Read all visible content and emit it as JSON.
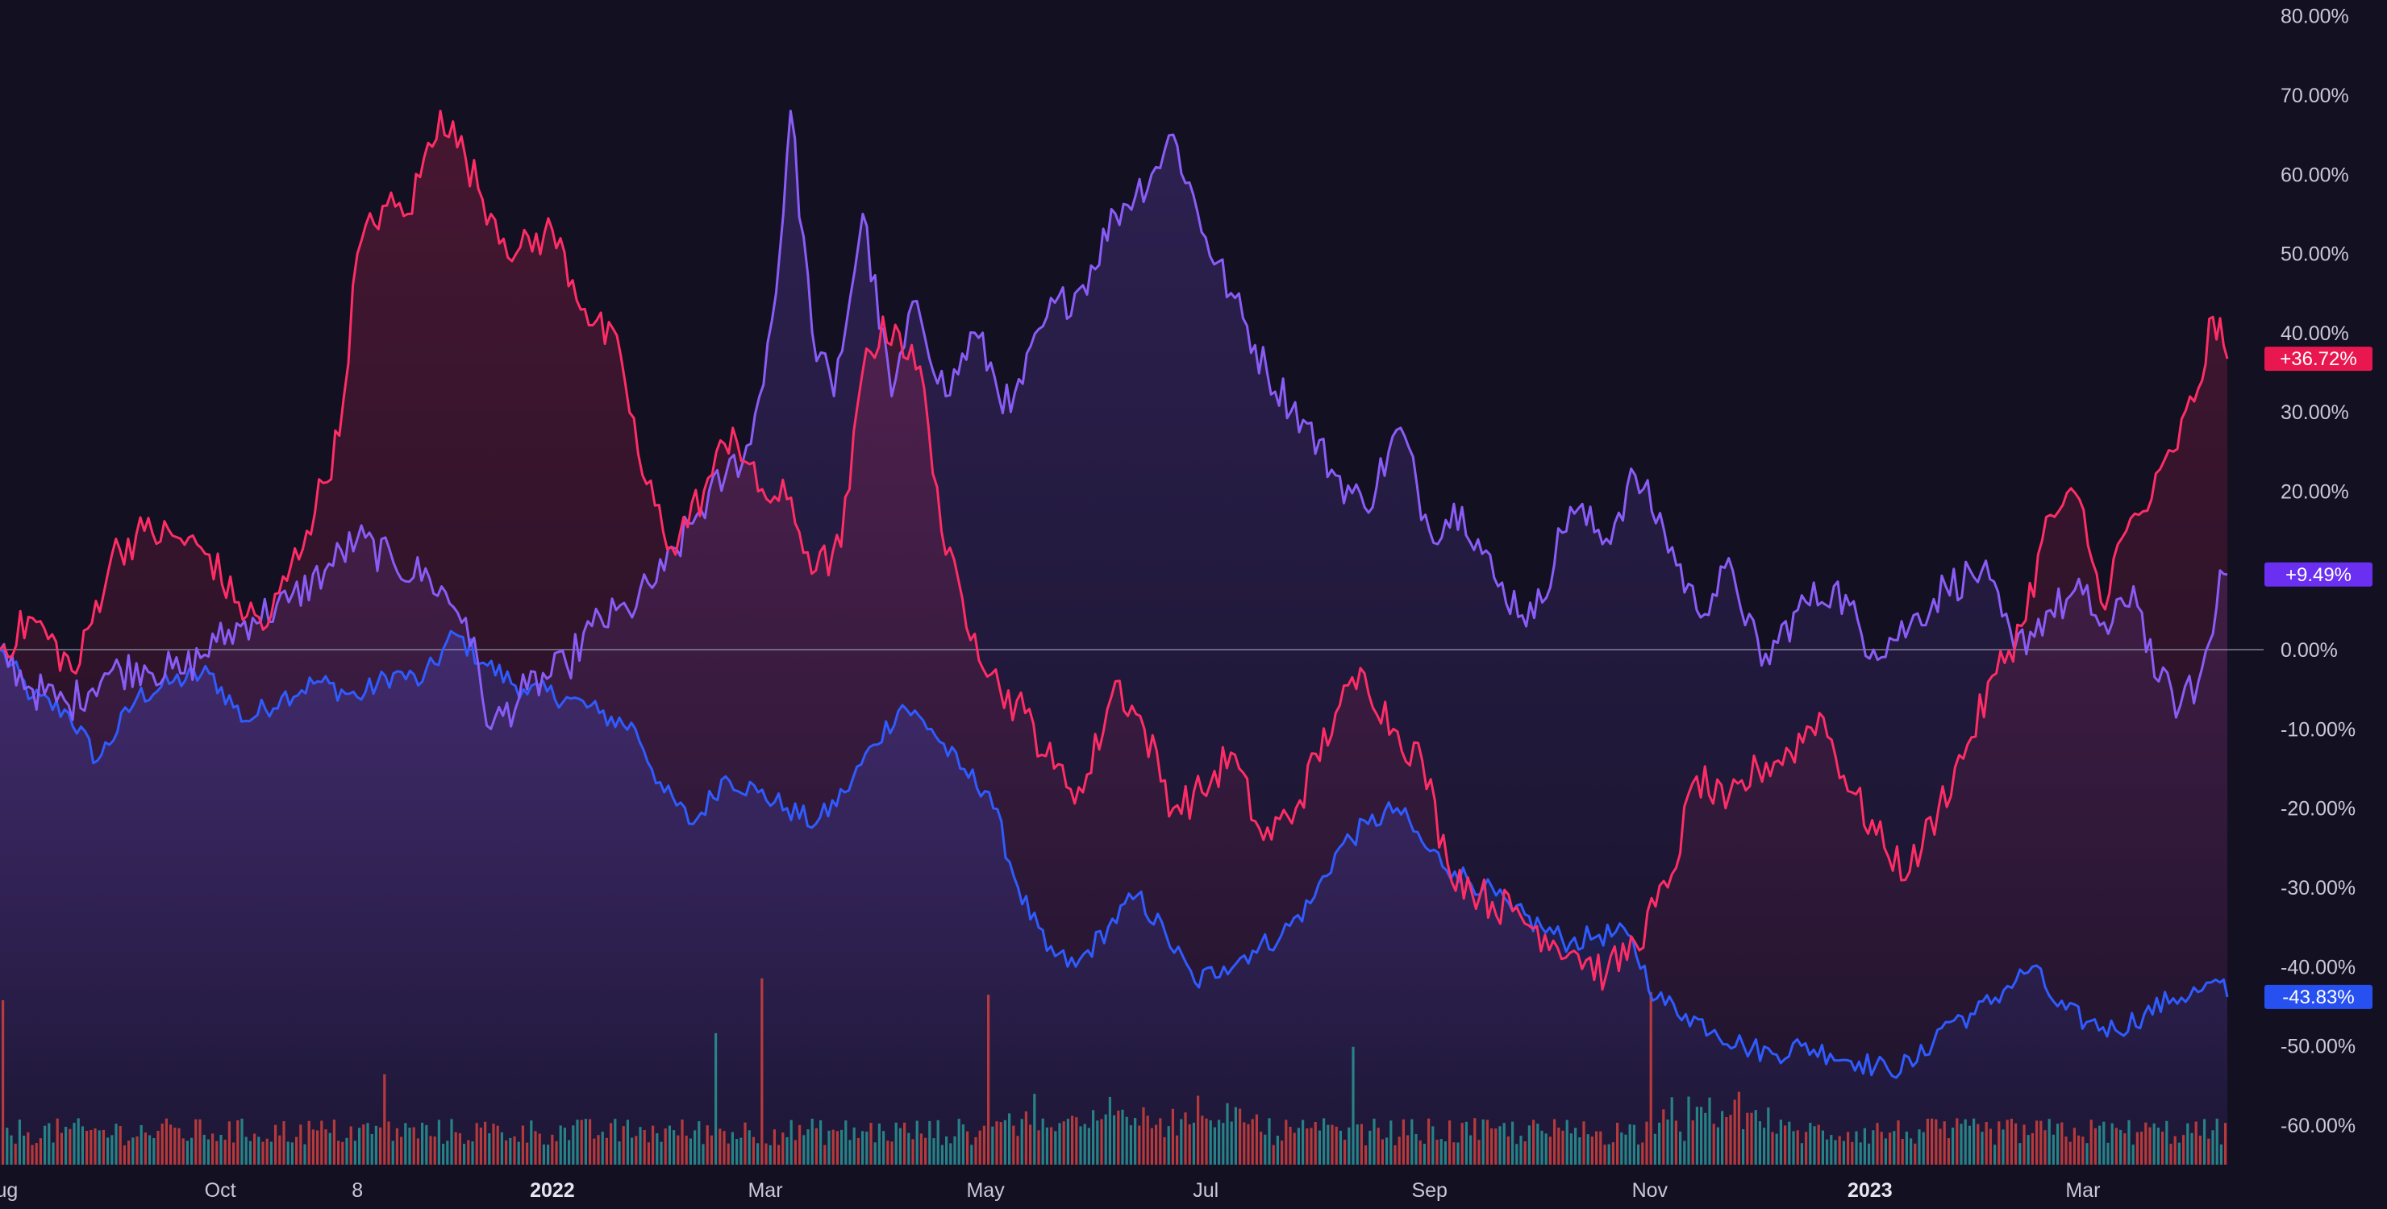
{
  "colors": {
    "background": "#131022",
    "red": "#ff2d66",
    "purple": "#8a5cf6",
    "blue": "#2f5bff",
    "baseline": "#9a9ab0",
    "vol_up": "#2aa6a0",
    "vol_down": "#e8453c",
    "tick": "#c9c8d6"
  },
  "chart_data": {
    "type": "line",
    "y_axis": {
      "unit": "%",
      "ylim": [
        -65,
        82
      ],
      "ticks": [
        "80.00%",
        "70.00%",
        "60.00%",
        "50.00%",
        "40.00%",
        "30.00%",
        "20.00%",
        "10.00%",
        "0.00%",
        "-10.00%",
        "-20.00%",
        "-30.00%",
        "-40.00%",
        "-50.00%",
        "-60.00%"
      ],
      "tick_values": [
        80,
        70,
        60,
        50,
        40,
        30,
        20,
        10,
        0,
        -10,
        -20,
        -30,
        -40,
        -50,
        -60
      ],
      "position": "right"
    },
    "x_axis": {
      "range": [
        "2021-08-01",
        "2023-04-10"
      ],
      "ticks": [
        {
          "label": "Aug",
          "date": "2021-08-01",
          "bold": false
        },
        {
          "label": "Oct",
          "date": "2021-10-01",
          "bold": false
        },
        {
          "label": "8",
          "date": "2021-11-08",
          "bold": false
        },
        {
          "label": "2022",
          "date": "2022-01-01",
          "bold": true
        },
        {
          "label": "Mar",
          "date": "2022-03-01",
          "bold": false
        },
        {
          "label": "May",
          "date": "2022-05-01",
          "bold": false
        },
        {
          "label": "Jul",
          "date": "2022-07-01",
          "bold": false
        },
        {
          "label": "Sep",
          "date": "2022-09-01",
          "bold": false
        },
        {
          "label": "Nov",
          "date": "2022-11-01",
          "bold": false
        },
        {
          "label": "2023",
          "date": "2023-01-01",
          "bold": true
        },
        {
          "label": "Mar",
          "date": "2023-03-01",
          "bold": false
        }
      ]
    },
    "series": [
      {
        "key": "red",
        "last_value_label": "+36.72%",
        "values": [
          [
            "2021-08-01",
            0
          ],
          [
            "2021-08-10",
            4
          ],
          [
            "2021-08-22",
            -3
          ],
          [
            "2021-09-01",
            12
          ],
          [
            "2021-09-10",
            15
          ],
          [
            "2021-09-20",
            14
          ],
          [
            "2021-09-28",
            12
          ],
          [
            "2021-10-05",
            6
          ],
          [
            "2021-10-14",
            3
          ],
          [
            "2021-10-25",
            15
          ],
          [
            "2021-11-03",
            27
          ],
          [
            "2021-11-08",
            50
          ],
          [
            "2021-11-15",
            56
          ],
          [
            "2021-11-22",
            55
          ],
          [
            "2021-12-01",
            68
          ],
          [
            "2021-12-08",
            62
          ],
          [
            "2021-12-15",
            55
          ],
          [
            "2021-12-22",
            50
          ],
          [
            "2022-01-01",
            53
          ],
          [
            "2022-01-10",
            43
          ],
          [
            "2022-01-20",
            37
          ],
          [
            "2022-01-26",
            22
          ],
          [
            "2022-02-03",
            13
          ],
          [
            "2022-02-12",
            20
          ],
          [
            "2022-02-20",
            28
          ],
          [
            "2022-02-27",
            20
          ],
          [
            "2022-03-07",
            19
          ],
          [
            "2022-03-15",
            10
          ],
          [
            "2022-03-22",
            13
          ],
          [
            "2022-03-29",
            38
          ],
          [
            "2022-04-06",
            41
          ],
          [
            "2022-04-14",
            33
          ],
          [
            "2022-04-20",
            12
          ],
          [
            "2022-04-28",
            2
          ],
          [
            "2022-05-05",
            -5
          ],
          [
            "2022-05-12",
            -8
          ],
          [
            "2022-05-20",
            -15
          ],
          [
            "2022-05-28",
            -18
          ],
          [
            "2022-06-06",
            -4
          ],
          [
            "2022-06-14",
            -10
          ],
          [
            "2022-06-22",
            -20
          ],
          [
            "2022-06-30",
            -18
          ],
          [
            "2022-07-08",
            -13
          ],
          [
            "2022-07-17",
            -24
          ],
          [
            "2022-07-26",
            -20
          ],
          [
            "2022-08-06",
            -8
          ],
          [
            "2022-08-14",
            -3
          ],
          [
            "2022-08-22",
            -10
          ],
          [
            "2022-08-30",
            -14
          ],
          [
            "2022-09-06",
            -27
          ],
          [
            "2022-09-15",
            -31
          ],
          [
            "2022-09-24",
            -33
          ],
          [
            "2022-10-03",
            -36
          ],
          [
            "2022-10-11",
            -38
          ],
          [
            "2022-10-20",
            -41
          ],
          [
            "2022-10-28",
            -37
          ],
          [
            "2022-11-06",
            -30
          ],
          [
            "2022-11-14",
            -16
          ],
          [
            "2022-11-22",
            -20
          ],
          [
            "2022-12-01",
            -15
          ],
          [
            "2022-12-10",
            -13
          ],
          [
            "2022-12-18",
            -8
          ],
          [
            "2022-12-27",
            -18
          ],
          [
            "2023-01-05",
            -25
          ],
          [
            "2023-01-12",
            -28
          ],
          [
            "2023-01-20",
            -20
          ],
          [
            "2023-01-28",
            -12
          ],
          [
            "2023-02-05",
            -3
          ],
          [
            "2023-02-12",
            3
          ],
          [
            "2023-02-20",
            17
          ],
          [
            "2023-02-28",
            19
          ],
          [
            "2023-03-06",
            6
          ],
          [
            "2023-03-13",
            15
          ],
          [
            "2023-03-20",
            19
          ],
          [
            "2023-03-26",
            25
          ],
          [
            "2023-04-02",
            33
          ],
          [
            "2023-04-06",
            42
          ],
          [
            "2023-04-10",
            36.72
          ]
        ]
      },
      {
        "key": "purple",
        "last_value_label": "+9.49%",
        "values": [
          [
            "2021-08-01",
            0
          ],
          [
            "2021-08-10",
            -5
          ],
          [
            "2021-08-20",
            -7
          ],
          [
            "2021-08-30",
            -3
          ],
          [
            "2021-09-10",
            -2
          ],
          [
            "2021-09-20",
            -3
          ],
          [
            "2021-09-30",
            1
          ],
          [
            "2021-10-10",
            4
          ],
          [
            "2021-10-20",
            6
          ],
          [
            "2021-10-30",
            10
          ],
          [
            "2021-11-08",
            14
          ],
          [
            "2021-11-18",
            11
          ],
          [
            "2021-11-28",
            9
          ],
          [
            "2021-12-08",
            4
          ],
          [
            "2021-12-15",
            -10
          ],
          [
            "2021-12-25",
            -5
          ],
          [
            "2022-01-05",
            -2
          ],
          [
            "2022-01-12",
            3
          ],
          [
            "2022-01-22",
            5
          ],
          [
            "2022-02-01",
            10
          ],
          [
            "2022-02-10",
            17
          ],
          [
            "2022-02-18",
            22
          ],
          [
            "2022-02-25",
            26
          ],
          [
            "2022-03-04",
            45
          ],
          [
            "2022-03-08",
            68
          ],
          [
            "2022-03-14",
            40
          ],
          [
            "2022-03-20",
            32
          ],
          [
            "2022-03-28",
            55
          ],
          [
            "2022-04-05",
            32
          ],
          [
            "2022-04-12",
            44
          ],
          [
            "2022-04-20",
            32
          ],
          [
            "2022-04-28",
            40
          ],
          [
            "2022-05-08",
            30
          ],
          [
            "2022-05-18",
            42
          ],
          [
            "2022-05-28",
            46
          ],
          [
            "2022-06-06",
            55
          ],
          [
            "2022-06-16",
            60
          ],
          [
            "2022-06-22",
            65
          ],
          [
            "2022-07-01",
            52
          ],
          [
            "2022-07-08",
            45
          ],
          [
            "2022-07-18",
            35
          ],
          [
            "2022-07-28",
            29
          ],
          [
            "2022-08-06",
            22
          ],
          [
            "2022-08-14",
            18
          ],
          [
            "2022-08-24",
            28
          ],
          [
            "2022-09-01",
            15
          ],
          [
            "2022-09-10",
            18
          ],
          [
            "2022-09-20",
            8
          ],
          [
            "2022-09-30",
            4
          ],
          [
            "2022-10-10",
            18
          ],
          [
            "2022-10-20",
            14
          ],
          [
            "2022-10-28",
            22
          ],
          [
            "2022-11-05",
            15
          ],
          [
            "2022-11-14",
            5
          ],
          [
            "2022-11-24",
            10
          ],
          [
            "2022-12-02",
            -2
          ],
          [
            "2022-12-12",
            5
          ],
          [
            "2022-12-22",
            8
          ],
          [
            "2023-01-02",
            0
          ],
          [
            "2023-01-12",
            3
          ],
          [
            "2023-01-22",
            8
          ],
          [
            "2023-02-01",
            10
          ],
          [
            "2023-02-10",
            0
          ],
          [
            "2023-02-20",
            5
          ],
          [
            "2023-03-01",
            7
          ],
          [
            "2023-03-08",
            2
          ],
          [
            "2023-03-15",
            8
          ],
          [
            "2023-03-22",
            -4
          ],
          [
            "2023-03-28",
            -7
          ],
          [
            "2023-04-02",
            -4
          ],
          [
            "2023-04-06",
            2
          ],
          [
            "2023-04-08",
            10
          ],
          [
            "2023-04-10",
            9.49
          ]
        ]
      },
      {
        "key": "blue",
        "last_value_label": "-43.83%",
        "values": [
          [
            "2021-08-01",
            0
          ],
          [
            "2021-08-10",
            -6
          ],
          [
            "2021-08-20",
            -8
          ],
          [
            "2021-08-28",
            -14
          ],
          [
            "2021-09-08",
            -6
          ],
          [
            "2021-09-18",
            -4
          ],
          [
            "2021-09-28",
            -3
          ],
          [
            "2021-10-08",
            -9
          ],
          [
            "2021-10-18",
            -6
          ],
          [
            "2021-10-28",
            -4
          ],
          [
            "2021-11-08",
            -6
          ],
          [
            "2021-11-18",
            -3
          ],
          [
            "2021-11-26",
            -4
          ],
          [
            "2021-12-05",
            2
          ],
          [
            "2021-12-14",
            -2
          ],
          [
            "2021-12-24",
            -5
          ],
          [
            "2022-01-05",
            -6
          ],
          [
            "2022-01-14",
            -8
          ],
          [
            "2022-01-24",
            -10
          ],
          [
            "2022-02-01",
            -18
          ],
          [
            "2022-02-09",
            -22
          ],
          [
            "2022-02-18",
            -16
          ],
          [
            "2022-02-27",
            -18
          ],
          [
            "2022-03-07",
            -20
          ],
          [
            "2022-03-15",
            -22
          ],
          [
            "2022-03-23",
            -18
          ],
          [
            "2022-03-31",
            -12
          ],
          [
            "2022-04-08",
            -7
          ],
          [
            "2022-04-16",
            -10
          ],
          [
            "2022-04-24",
            -15
          ],
          [
            "2022-05-02",
            -18
          ],
          [
            "2022-05-10",
            -30
          ],
          [
            "2022-05-18",
            -38
          ],
          [
            "2022-05-26",
            -40
          ],
          [
            "2022-06-04",
            -35
          ],
          [
            "2022-06-12",
            -31
          ],
          [
            "2022-06-20",
            -36
          ],
          [
            "2022-06-28",
            -42
          ],
          [
            "2022-07-06",
            -40
          ],
          [
            "2022-07-14",
            -38
          ],
          [
            "2022-07-22",
            -36
          ],
          [
            "2022-07-30",
            -32
          ],
          [
            "2022-08-07",
            -25
          ],
          [
            "2022-08-15",
            -22
          ],
          [
            "2022-08-23",
            -20
          ],
          [
            "2022-08-31",
            -25
          ],
          [
            "2022-09-08",
            -28
          ],
          [
            "2022-09-16",
            -30
          ],
          [
            "2022-09-24",
            -33
          ],
          [
            "2022-10-02",
            -35
          ],
          [
            "2022-10-10",
            -37
          ],
          [
            "2022-10-18",
            -36
          ],
          [
            "2022-10-26",
            -36
          ],
          [
            "2022-11-03",
            -44
          ],
          [
            "2022-11-11",
            -46
          ],
          [
            "2022-11-19",
            -48
          ],
          [
            "2022-11-27",
            -50
          ],
          [
            "2022-12-05",
            -51
          ],
          [
            "2022-12-13",
            -50
          ],
          [
            "2022-12-21",
            -51
          ],
          [
            "2022-12-29",
            -52
          ],
          [
            "2023-01-06",
            -53
          ],
          [
            "2023-01-14",
            -52
          ],
          [
            "2023-01-22",
            -47
          ],
          [
            "2023-01-30",
            -46
          ],
          [
            "2023-02-07",
            -43
          ],
          [
            "2023-02-15",
            -40
          ],
          [
            "2023-02-22",
            -45
          ],
          [
            "2023-03-02",
            -47
          ],
          [
            "2023-03-10",
            -48
          ],
          [
            "2023-03-18",
            -46
          ],
          [
            "2023-03-26",
            -44
          ],
          [
            "2023-04-03",
            -43
          ],
          [
            "2023-04-08",
            -42
          ],
          [
            "2023-04-10",
            -43.83
          ]
        ]
      }
    ],
    "volume": {
      "description": "volume histogram at bottom; up bars teal, down bars red",
      "relative_peaks": [
        [
          "2021-08-01",
          0.6
        ],
        [
          "2021-11-15",
          0.33
        ],
        [
          "2022-02-15",
          0.48
        ],
        [
          "2022-02-28",
          0.68
        ],
        [
          "2022-05-01",
          0.62
        ],
        [
          "2022-08-10",
          0.43
        ],
        [
          "2022-11-01",
          0.63
        ]
      ]
    }
  }
}
